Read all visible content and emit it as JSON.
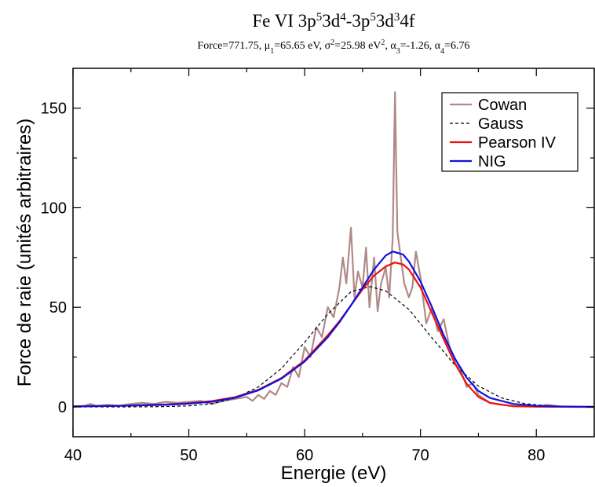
{
  "title": {
    "prefix": "Fe VI 3p",
    "parts": [
      {
        "t": "5",
        "sup": true
      },
      {
        "t": "3d",
        "sup": false
      },
      {
        "t": "4",
        "sup": true
      },
      {
        "t": "-3p",
        "sup": false
      },
      {
        "t": "5",
        "sup": true
      },
      {
        "t": "3d",
        "sup": false
      },
      {
        "t": "3",
        "sup": true
      },
      {
        "t": "4f",
        "sup": false
      }
    ]
  },
  "subtitle": {
    "parts": [
      {
        "t": "Force=771.75,  μ",
        "k": "n"
      },
      {
        "t": "1",
        "k": "sub"
      },
      {
        "t": "=65.65 eV, σ",
        "k": "n"
      },
      {
        "t": "2",
        "k": "sup"
      },
      {
        "t": "=25.98 eV",
        "k": "n"
      },
      {
        "t": "2",
        "k": "sup"
      },
      {
        "t": ", α",
        "k": "n"
      },
      {
        "t": "3",
        "k": "sub"
      },
      {
        "t": "=-1.26, α",
        "k": "n"
      },
      {
        "t": "4",
        "k": "sub"
      },
      {
        "t": "=6.76",
        "k": "n"
      }
    ]
  },
  "chart_data": {
    "type": "line",
    "xlabel": "Energie (eV)",
    "ylabel": "Force de raie (unités arbitraires)",
    "xlim": [
      40,
      85
    ],
    "ylim": [
      -15,
      170
    ],
    "xticks": [
      40,
      50,
      60,
      70,
      80
    ],
    "yticks": [
      0,
      50,
      100,
      150
    ],
    "grid": false,
    "legend_position": "top-right",
    "series": [
      {
        "name": "Cowan",
        "color": "#b08a86",
        "style": "solid",
        "x": [
          40,
          41,
          41.5,
          42,
          43,
          44,
          45,
          46,
          47,
          48,
          49,
          50,
          51,
          52,
          53,
          54,
          55,
          55.5,
          56,
          56.5,
          57,
          57.5,
          58,
          58.5,
          59,
          59.5,
          60,
          60.5,
          61,
          61.5,
          62,
          62.5,
          63,
          63.3,
          63.6,
          64,
          64.3,
          64.6,
          65,
          65.3,
          65.6,
          66,
          66.3,
          66.6,
          67,
          67.3,
          67.6,
          67.8,
          68,
          68.3,
          68.6,
          69,
          69.3,
          69.6,
          70,
          70.5,
          71,
          71.5,
          72,
          72.5,
          73,
          73.5,
          74,
          74.5,
          75,
          75.5,
          76,
          77,
          78,
          79,
          80,
          81,
          82,
          83,
          84,
          85
        ],
        "y": [
          0,
          0.5,
          1.5,
          0.5,
          1,
          0.5,
          1.5,
          2,
          1.5,
          2.5,
          2,
          2.5,
          3,
          1.5,
          3,
          4,
          5,
          3,
          6,
          4,
          8,
          6,
          12,
          10,
          20,
          15,
          30,
          25,
          40,
          35,
          50,
          45,
          60,
          75,
          62,
          90,
          55,
          68,
          60,
          80,
          50,
          75,
          48,
          62,
          70,
          55,
          85,
          158,
          88,
          75,
          62,
          55,
          60,
          78,
          65,
          42,
          50,
          38,
          44,
          30,
          22,
          18,
          10,
          12,
          6,
          4,
          2,
          1,
          0.5,
          0.3,
          0.2,
          1,
          0.2,
          0,
          0,
          0
        ]
      },
      {
        "name": "Gauss",
        "color": "#000000",
        "style": "dashed",
        "x": [
          40,
          42,
          44,
          46,
          48,
          50,
          52,
          54,
          56,
          58,
          60,
          62,
          64,
          65.65,
          67,
          69,
          71,
          73,
          75,
          77,
          79,
          81,
          83,
          85
        ],
        "y": [
          0,
          0,
          0,
          0.03,
          0.14,
          0.5,
          1.6,
          4.4,
          10,
          19.3,
          32.4,
          46.6,
          57.8,
          60.4,
          58.2,
          49,
          34.6,
          20.8,
          10.5,
          4.5,
          1.6,
          0.5,
          0.1,
          0.03
        ]
      },
      {
        "name": "Pearson IV",
        "color": "#ee1111",
        "style": "solid",
        "x": [
          40,
          44,
          48,
          50,
          52,
          54,
          56,
          58,
          60,
          62,
          63,
          64,
          65,
          66,
          67,
          67.8,
          68.5,
          69,
          70,
          71,
          72,
          73,
          74,
          75,
          76,
          78,
          80,
          85
        ],
        "y": [
          0.3,
          0.6,
          1.2,
          1.8,
          2.9,
          4.9,
          8.6,
          14.5,
          23.3,
          36,
          43,
          51,
          59,
          66,
          70.5,
          72.5,
          71.5,
          69,
          60,
          47,
          34,
          21.5,
          11.5,
          5,
          2,
          0.3,
          0.05,
          0
        ]
      },
      {
        "name": "NIG",
        "color": "#1111dd",
        "style": "solid",
        "x": [
          40,
          44,
          48,
          50,
          52,
          54,
          56,
          58,
          60,
          62,
          63,
          64,
          65,
          66,
          67,
          67.6,
          68.5,
          69,
          70,
          71,
          72,
          73,
          74,
          75,
          76,
          78,
          80,
          82,
          85
        ],
        "y": [
          0.2,
          0.5,
          1,
          1.6,
          2.6,
          4.6,
          8.3,
          14.2,
          22.8,
          35,
          42.5,
          51,
          60,
          69,
          76,
          78,
          76.5,
          73,
          63,
          50,
          36,
          24,
          14.5,
          8,
          4.5,
          1.5,
          0.5,
          0.2,
          0
        ]
      }
    ]
  }
}
